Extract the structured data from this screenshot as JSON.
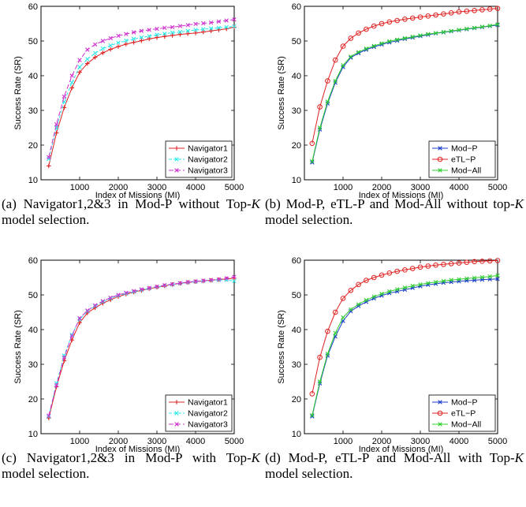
{
  "chart_data": [
    {
      "type": "line",
      "xlabel": "Index of Missions (MI)",
      "ylabel": "Success Rate (SR)",
      "xlim": [
        0,
        5000
      ],
      "ylim": [
        10,
        60
      ],
      "xticks": [
        1000,
        2000,
        3000,
        4000,
        5000
      ],
      "yticks": [
        10,
        20,
        30,
        40,
        50,
        60
      ],
      "legend_position": "bottom-right",
      "caption_parts": [
        "(a) Navigator1,2&3 in Mod-P without Top-",
        "K",
        " model selection."
      ],
      "x": [
        200,
        400,
        600,
        800,
        1000,
        1200,
        1400,
        1600,
        1800,
        2000,
        2200,
        2400,
        2600,
        2800,
        3000,
        3200,
        3400,
        3600,
        3800,
        4000,
        4200,
        4400,
        4600,
        4800,
        5000
      ],
      "series": [
        {
          "name": "Navigator1",
          "color": "#e02020",
          "marker": "plus",
          "dash": "none",
          "values": [
            14.0,
            23.5,
            30.8,
            36.5,
            41.0,
            43.5,
            45.3,
            46.6,
            47.6,
            48.4,
            49.1,
            49.6,
            50.1,
            50.6,
            51.0,
            51.3,
            51.6,
            51.9,
            52.1,
            52.3,
            52.6,
            52.9,
            53.2,
            53.5,
            54.0
          ]
        },
        {
          "name": "Navigator2",
          "color": "#30e8e8",
          "marker": "x",
          "dash": "4,2",
          "values": [
            16.0,
            25.0,
            32.5,
            38.0,
            42.5,
            44.8,
            46.5,
            47.8,
            48.7,
            49.5,
            50.1,
            50.6,
            51.0,
            51.4,
            51.8,
            52.1,
            52.4,
            52.6,
            52.9,
            53.2,
            53.4,
            53.6,
            53.8,
            54.0,
            54.2
          ]
        },
        {
          "name": "Navigator3",
          "color": "#d030d0",
          "marker": "x",
          "dash": "6,3",
          "values": [
            16.5,
            26.0,
            34.0,
            40.0,
            44.5,
            47.5,
            49.0,
            50.0,
            50.8,
            51.5,
            52.0,
            52.5,
            52.9,
            53.2,
            53.5,
            53.8,
            54.0,
            54.3,
            54.6,
            54.9,
            55.1,
            55.3,
            55.6,
            55.9,
            56.2
          ]
        }
      ]
    },
    {
      "type": "line",
      "xlabel": "Index of Missions (MI)",
      "ylabel": "Success Rate (SR)",
      "xlim": [
        0,
        5000
      ],
      "ylim": [
        10,
        60
      ],
      "xticks": [
        1000,
        2000,
        3000,
        4000,
        5000
      ],
      "yticks": [
        10,
        20,
        30,
        40,
        50,
        60
      ],
      "legend_position": "bottom-right",
      "caption_parts": [
        "(b) Mod-P, eTL-P and Mod-All without top-",
        "K",
        " model selection."
      ],
      "x": [
        200,
        400,
        600,
        800,
        1000,
        1200,
        1400,
        1600,
        1800,
        2000,
        2200,
        2400,
        2600,
        2800,
        3000,
        3200,
        3400,
        3600,
        3800,
        4000,
        4200,
        4400,
        4600,
        4800,
        5000
      ],
      "series": [
        {
          "name": "Mod−P",
          "color": "#1a3cc8",
          "marker": "x",
          "dash": "none",
          "values": [
            15.0,
            24.5,
            32.0,
            38.0,
            42.5,
            45.2,
            46.5,
            47.5,
            48.3,
            49.0,
            49.6,
            50.1,
            50.6,
            51.0,
            51.4,
            51.8,
            52.2,
            52.5,
            52.8,
            53.1,
            53.4,
            53.7,
            54.0,
            54.3,
            54.6
          ]
        },
        {
          "name": "eTL−P",
          "color": "#e02020",
          "marker": "circle",
          "dash": "none",
          "values": [
            20.5,
            31.0,
            38.5,
            44.5,
            48.5,
            50.8,
            52.3,
            53.4,
            54.3,
            55.0,
            55.5,
            55.9,
            56.3,
            56.6,
            56.9,
            57.2,
            57.5,
            57.8,
            58.1,
            58.4,
            58.6,
            58.8,
            59.0,
            59.2,
            59.4
          ]
        },
        {
          "name": "Mod−All",
          "color": "#30d030",
          "marker": "x",
          "dash": "none",
          "values": [
            15.3,
            25.0,
            32.5,
            38.5,
            43.0,
            45.5,
            46.8,
            47.8,
            48.6,
            49.3,
            49.9,
            50.4,
            50.8,
            51.2,
            51.6,
            52.0,
            52.3,
            52.6,
            52.9,
            53.2,
            53.5,
            53.8,
            54.1,
            54.4,
            54.8
          ]
        }
      ]
    },
    {
      "type": "line",
      "xlabel": "Index of Missions (MI)",
      "ylabel": "Success Rate (SR)",
      "xlim": [
        0,
        5000
      ],
      "ylim": [
        10,
        60
      ],
      "xticks": [
        1000,
        2000,
        3000,
        4000,
        5000
      ],
      "yticks": [
        10,
        20,
        30,
        40,
        50,
        60
      ],
      "legend_position": "bottom-right",
      "caption_parts": [
        "(c) Navigator1,2&3 in Mod-P with Top-",
        "K",
        " model selection."
      ],
      "x": [
        200,
        400,
        600,
        800,
        1000,
        1200,
        1400,
        1600,
        1800,
        2000,
        2200,
        2400,
        2600,
        2800,
        3000,
        3200,
        3400,
        3600,
        3800,
        4000,
        4200,
        4400,
        4600,
        4800,
        5000
      ],
      "series": [
        {
          "name": "Navigator1",
          "color": "#e02020",
          "marker": "plus",
          "dash": "none",
          "values": [
            14.5,
            23.5,
            31.0,
            37.0,
            42.0,
            44.8,
            46.3,
            47.6,
            48.6,
            49.5,
            50.2,
            50.8,
            51.3,
            51.8,
            52.2,
            52.6,
            53.0,
            53.3,
            53.6,
            53.8,
            54.0,
            54.2,
            54.4,
            54.6,
            54.8
          ]
        },
        {
          "name": "Navigator2",
          "color": "#30e8e8",
          "marker": "x",
          "dash": "4,2",
          "values": [
            15.0,
            24.5,
            32.5,
            38.5,
            43.0,
            45.3,
            46.8,
            48.0,
            49.0,
            49.8,
            50.4,
            50.9,
            51.4,
            51.9,
            52.3,
            52.7,
            53.0,
            53.3,
            53.6,
            53.8,
            54.0,
            54.2,
            54.3,
            54.3,
            54.0
          ]
        },
        {
          "name": "Navigator3",
          "color": "#d030d0",
          "marker": "x",
          "dash": "6,3",
          "values": [
            15.2,
            24.0,
            32.0,
            38.2,
            43.3,
            45.5,
            47.0,
            48.2,
            49.2,
            50.0,
            50.6,
            51.1,
            51.6,
            52.0,
            52.4,
            52.8,
            53.1,
            53.4,
            53.7,
            53.9,
            54.1,
            54.3,
            54.5,
            54.8,
            55.2
          ]
        }
      ]
    },
    {
      "type": "line",
      "xlabel": "Index of Missions (MI)",
      "ylabel": "Success Rate (SR)",
      "xlim": [
        0,
        5000
      ],
      "ylim": [
        10,
        60
      ],
      "xticks": [
        1000,
        2000,
        3000,
        4000,
        5000
      ],
      "yticks": [
        10,
        20,
        30,
        40,
        50,
        60
      ],
      "legend_position": "bottom-right",
      "caption_parts": [
        "(d) Mod-P, eTL-P and Mod-All with Top-",
        "K",
        " model selection."
      ],
      "x": [
        200,
        400,
        600,
        800,
        1000,
        1200,
        1400,
        1600,
        1800,
        2000,
        2200,
        2400,
        2600,
        2800,
        3000,
        3200,
        3400,
        3600,
        3800,
        4000,
        4200,
        4400,
        4600,
        4800,
        5000
      ],
      "series": [
        {
          "name": "Mod−P",
          "color": "#1a3cc8",
          "marker": "x",
          "dash": "none",
          "values": [
            15.0,
            24.5,
            32.5,
            38.0,
            42.5,
            45.3,
            46.8,
            48.0,
            49.0,
            49.8,
            50.5,
            51.0,
            51.5,
            52.0,
            52.5,
            52.9,
            53.2,
            53.5,
            53.7,
            53.9,
            54.1,
            54.2,
            54.4,
            54.5,
            54.6
          ]
        },
        {
          "name": "eTL−P",
          "color": "#e02020",
          "marker": "circle",
          "dash": "none",
          "values": [
            21.5,
            32.0,
            39.5,
            45.0,
            49.0,
            51.3,
            53.0,
            54.2,
            55.0,
            55.7,
            56.3,
            56.8,
            57.2,
            57.6,
            58.0,
            58.3,
            58.6,
            58.8,
            59.0,
            59.2,
            59.4,
            59.6,
            59.7,
            59.8,
            59.9
          ]
        },
        {
          "name": "Mod−All",
          "color": "#30d030",
          "marker": "x",
          "dash": "none",
          "values": [
            15.3,
            25.0,
            33.0,
            39.0,
            43.5,
            45.8,
            47.3,
            48.5,
            49.5,
            50.3,
            51.0,
            51.6,
            52.1,
            52.6,
            53.0,
            53.4,
            53.7,
            54.0,
            54.3,
            54.5,
            54.7,
            54.9,
            55.1,
            55.3,
            55.6
          ]
        }
      ]
    }
  ]
}
